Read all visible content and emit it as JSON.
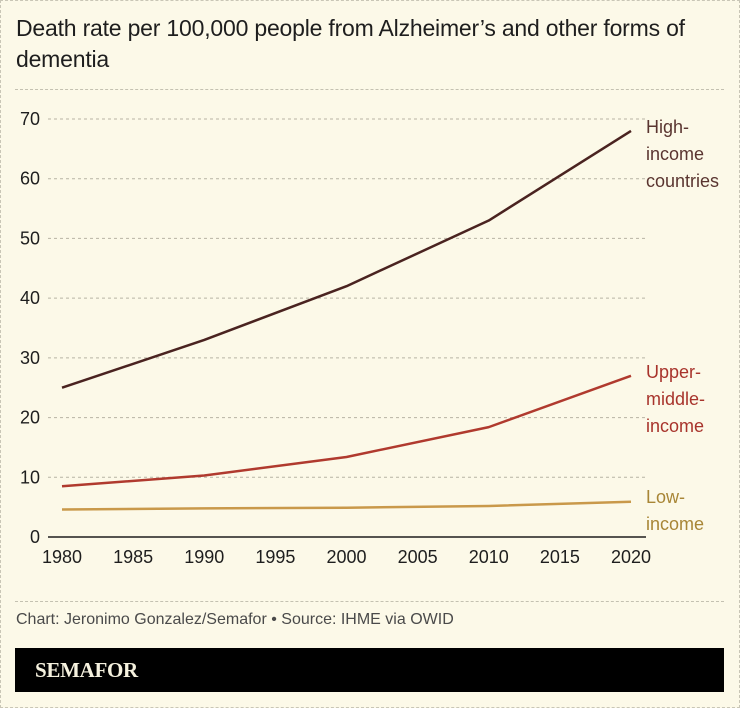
{
  "header": {
    "title": "Death rate per 100,000 people from Alzheimer’s and other forms of dementia"
  },
  "footer": {
    "source": "Chart: Jeronimo Gonzalez/Semafor • Source: IHME via OWID",
    "brand": "SEMAFOR"
  },
  "colors": {
    "background": "#fcf9e8",
    "high_income": "#4a2320",
    "upper_middle_income": "#b03a2e",
    "low_income": "#c9994a"
  },
  "chart_data": {
    "type": "line",
    "title": "Death rate per 100,000 people from Alzheimer’s and other forms of dementia",
    "xlabel": "",
    "ylabel": "",
    "x": [
      1980,
      1990,
      2000,
      2010,
      2020
    ],
    "xticks": [
      "1980",
      "1985",
      "1990",
      "1995",
      "2000",
      "2005",
      "2010",
      "2015",
      "2020"
    ],
    "yticks": [
      "0",
      "10",
      "20",
      "30",
      "40",
      "50",
      "60",
      "70"
    ],
    "ylim": [
      0,
      70
    ],
    "xlim": [
      1980,
      2020
    ],
    "grid": true,
    "legend_position": "direct labels at right end of lines",
    "series": [
      {
        "name": "High-income countries",
        "label_lines": [
          "High-",
          "income",
          "countries"
        ],
        "color": "#4a2320",
        "label_color": "#5a3530",
        "values": [
          25,
          33,
          42,
          53,
          68
        ]
      },
      {
        "name": "Upper-middle-income",
        "label_lines": [
          "Upper-",
          "middle-",
          "income"
        ],
        "color": "#b03a2e",
        "label_color": "#a8342c",
        "values": [
          8.5,
          10.3,
          13.4,
          18.4,
          27
        ]
      },
      {
        "name": "Low-income",
        "label_lines": [
          "Low-",
          "income"
        ],
        "color": "#c9994a",
        "label_color": "#a88636",
        "values": [
          4.6,
          4.8,
          4.9,
          5.2,
          5.9
        ]
      }
    ]
  }
}
